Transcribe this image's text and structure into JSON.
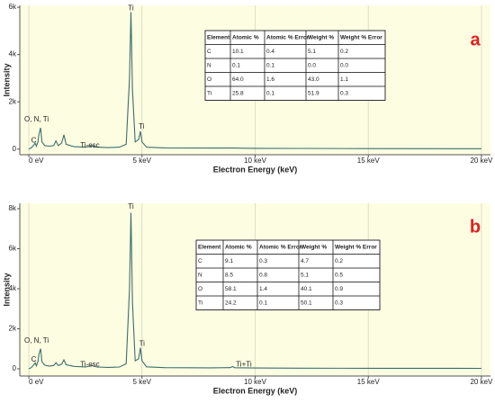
{
  "chart_data": [
    {
      "type": "line",
      "tag": "a",
      "ylabel": "Intensity",
      "xlabel": "Electron Energy (keV)",
      "color": "#3b6e6e",
      "grid": true,
      "xlim": [
        -0.4,
        20.4
      ],
      "ylim": [
        -240,
        6080
      ],
      "xticks": [
        {
          "value": 0,
          "label": "0 eV"
        },
        {
          "value": 5,
          "label": "5 keV"
        },
        {
          "value": 10,
          "label": "10 keV"
        },
        {
          "value": 15,
          "label": "15 keV"
        },
        {
          "value": 20,
          "label": "20 keV"
        }
      ],
      "yticks": [
        0,
        {
          "value": 2000,
          "label": "2k"
        },
        {
          "value": 4000,
          "label": "4k"
        },
        {
          "value": 6000,
          "label": "6k"
        }
      ],
      "x": [
        0.0,
        0.1,
        0.2,
        0.28,
        0.33,
        0.4,
        0.45,
        0.52,
        0.58,
        0.7,
        0.9,
        1.1,
        1.2,
        1.3,
        1.45,
        1.55,
        1.65,
        2.0,
        2.5,
        2.8,
        3.0,
        3.5,
        4.0,
        4.3,
        4.45,
        4.51,
        4.58,
        4.7,
        4.85,
        4.93,
        5.0,
        5.2,
        6,
        8,
        9,
        10,
        12,
        15,
        20
      ],
      "values": [
        0,
        50,
        150,
        250,
        120,
        300,
        650,
        900,
        300,
        150,
        120,
        150,
        350,
        150,
        250,
        600,
        200,
        100,
        80,
        130,
        80,
        60,
        80,
        200,
        3000,
        5800,
        2500,
        300,
        400,
        750,
        300,
        80,
        50,
        40,
        40,
        30,
        25,
        20,
        15
      ],
      "annotations": [
        "C",
        "O, N, Ti",
        "Ti",
        "Ti",
        "Ti-esc"
      ],
      "table": {
        "columns": [
          "Element",
          "Atomic %",
          "Atomic % Error",
          "Weight %",
          "Weight % Error"
        ],
        "rows": [
          [
            "C",
            "10.1",
            "0.4",
            "5.1",
            "0.2"
          ],
          [
            "N",
            "0.1",
            "0.1",
            "0.0",
            "0.0"
          ],
          [
            "O",
            "64.0",
            "1.6",
            "43.0",
            "1.1"
          ],
          [
            "Ti",
            "25.8",
            "0.1",
            "51.9",
            "0.3"
          ]
        ]
      }
    },
    {
      "type": "line",
      "tag": "b",
      "ylabel": "Intensity",
      "xlabel": "Electron Energy (keV)",
      "color": "#3b6e6e",
      "grid": true,
      "xlim": [
        -0.4,
        20.4
      ],
      "ylim": [
        -360,
        8270
      ],
      "xticks": [
        {
          "value": 0,
          "label": "0 eV"
        },
        {
          "value": 5,
          "label": "5 keV"
        },
        {
          "value": 10,
          "label": "10 keV"
        },
        {
          "value": 15,
          "label": "15 keV"
        },
        {
          "value": 20,
          "label": "20 keV"
        }
      ],
      "yticks": [
        0,
        {
          "value": 2000,
          "label": "2k"
        },
        {
          "value": 4000,
          "label": "4k"
        },
        {
          "value": 6000,
          "label": "6k"
        },
        {
          "value": 8000,
          "label": "8k"
        }
      ],
      "x": [
        0.0,
        0.1,
        0.2,
        0.28,
        0.33,
        0.4,
        0.45,
        0.52,
        0.58,
        0.7,
        0.9,
        1.1,
        1.2,
        1.3,
        1.45,
        1.55,
        1.65,
        2.0,
        2.5,
        2.8,
        3.0,
        3.5,
        4.0,
        4.3,
        4.45,
        4.51,
        4.58,
        4.7,
        4.85,
        4.93,
        5.0,
        5.2,
        6,
        8,
        8.9,
        9.0,
        9.1,
        10,
        12,
        15,
        20
      ],
      "values": [
        0,
        60,
        180,
        300,
        150,
        350,
        750,
        1000,
        350,
        180,
        140,
        160,
        300,
        160,
        230,
        450,
        200,
        120,
        90,
        160,
        90,
        70,
        90,
        250,
        4000,
        7800,
        3300,
        400,
        500,
        1050,
        400,
        100,
        60,
        50,
        60,
        110,
        55,
        40,
        30,
        25,
        20
      ],
      "annotations": [
        "C",
        "O, N, Ti",
        "Ti",
        "Ti",
        "Ti-esc",
        "Ti+Ti"
      ],
      "table": {
        "columns": [
          "Element",
          "Atomic %",
          "Atomic % Error",
          "Weight %",
          "Weight % Error"
        ],
        "rows": [
          [
            "C",
            "9.1",
            "0.3",
            "4.7",
            "0.2"
          ],
          [
            "N",
            "8.5",
            "0.8",
            "5.1",
            "0.5"
          ],
          [
            "O",
            "58.1",
            "1.4",
            "40.1",
            "0.9"
          ],
          [
            "Ti",
            "24.2",
            "0.1",
            "50.1",
            "0.3"
          ]
        ]
      }
    }
  ]
}
